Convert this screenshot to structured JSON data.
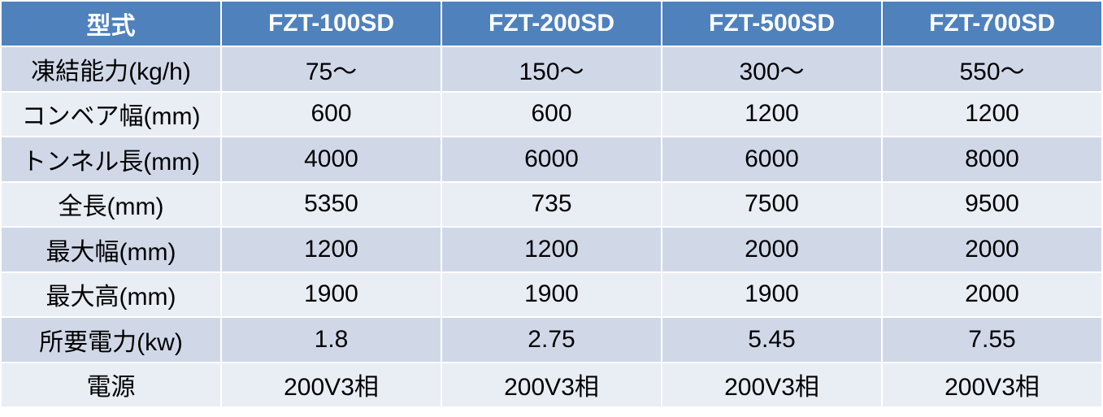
{
  "header": {
    "label": "型式",
    "models": [
      "FZT-100SD",
      "FZT-200SD",
      "FZT-500SD",
      "FZT-700SD"
    ]
  },
  "rows": [
    {
      "label": "凍結能力(kg/h)",
      "values": [
        "75〜",
        "150〜",
        "300〜",
        "550〜"
      ]
    },
    {
      "label": "コンベア幅(mm)",
      "values": [
        "600",
        "600",
        "1200",
        "1200"
      ]
    },
    {
      "label": "トンネル長(mm)",
      "values": [
        "4000",
        "6000",
        "6000",
        "8000"
      ]
    },
    {
      "label": "全長(mm)",
      "values": [
        "5350",
        "735",
        "7500",
        "9500"
      ]
    },
    {
      "label": "最大幅(mm)",
      "values": [
        "1200",
        "1200",
        "2000",
        "2000"
      ]
    },
    {
      "label": "最大高(mm)",
      "values": [
        "1900",
        "1900",
        "1900",
        "2000"
      ]
    },
    {
      "label": "所要電力(kw)",
      "values": [
        "1.8",
        "2.75",
        "5.45",
        "7.55"
      ]
    },
    {
      "label": "電源",
      "values": [
        "200V3相",
        "200V3相",
        "200V3相",
        "200V3相"
      ]
    }
  ],
  "colors": {
    "header_bg": "#4f81bd",
    "row_bg_dark": "#d0d8e8",
    "row_bg_light": "#e9edf4"
  }
}
